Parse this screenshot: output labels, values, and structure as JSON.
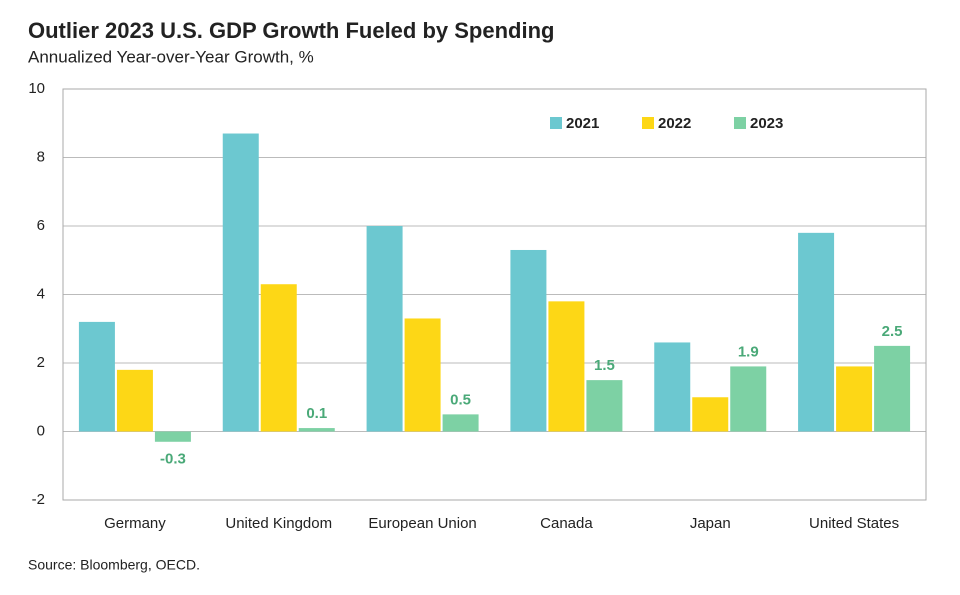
{
  "chart_data": {
    "type": "bar",
    "title": "Outlier 2023 U.S. GDP Growth Fueled by Spending",
    "subtitle": "Annualized Year-over-Year Growth, %",
    "source": "Source: Bloomberg, OECD.",
    "categories": [
      "Germany",
      "United Kingdom",
      "European Union",
      "Canada",
      "Japan",
      "United States"
    ],
    "series": [
      {
        "name": "2021",
        "color": "#6cc8d0",
        "values": [
          3.2,
          8.7,
          6.0,
          5.3,
          2.6,
          5.8
        ]
      },
      {
        "name": "2022",
        "color": "#fdd716",
        "values": [
          1.8,
          4.3,
          3.3,
          3.8,
          1.0,
          1.9
        ]
      },
      {
        "name": "2023",
        "color": "#7dd1a4",
        "values": [
          -0.3,
          0.1,
          0.5,
          1.5,
          1.9,
          2.5
        ],
        "show_labels": true,
        "label_color": "#4aa978"
      }
    ],
    "ylim": [
      -2,
      10
    ],
    "yticks": [
      -2,
      0,
      2,
      4,
      6,
      8,
      10
    ],
    "grid": true,
    "legend": "top-right"
  }
}
